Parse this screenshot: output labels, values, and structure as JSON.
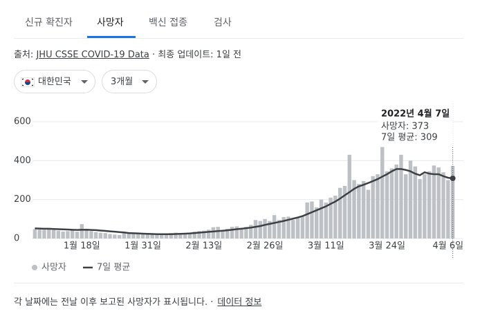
{
  "tabs": [
    "신규 확진자",
    "사망자",
    "백신 접종",
    "검사"
  ],
  "source": {
    "label": "출처:",
    "link": "JHU CSSE COVID-19 Data",
    "updated": "· 최종 업데이트: 1일 전"
  },
  "filters": [
    "대한민국",
    "3개월"
  ],
  "chart_data": {
    "type": "bar",
    "categories": [
      null,
      null,
      null,
      null,
      null,
      null,
      null,
      null,
      null,
      null,
      "1월 18일",
      null,
      null,
      null,
      null,
      null,
      null,
      null,
      null,
      null,
      null,
      null,
      null,
      "1월 31일",
      null,
      null,
      null,
      null,
      null,
      null,
      null,
      null,
      null,
      null,
      null,
      null,
      "2월 13일",
      null,
      null,
      null,
      null,
      null,
      null,
      null,
      null,
      null,
      null,
      null,
      null,
      "2월 26일",
      null,
      null,
      null,
      null,
      null,
      null,
      null,
      null,
      null,
      null,
      null,
      null,
      "3월 11일",
      null,
      null,
      null,
      null,
      null,
      null,
      null,
      null,
      null,
      null,
      null,
      null,
      "3월 24일",
      null,
      null,
      null,
      null,
      null,
      null,
      null,
      null,
      null,
      null,
      null,
      null,
      "4월 6일",
      null
    ],
    "series": [
      {
        "name": "사망자",
        "type": "bar",
        "color": "#bdc1c6",
        "values": [
          48,
          46,
          45,
          52,
          44,
          40,
          36,
          38,
          42,
          35,
          74,
          50,
          38,
          33,
          30,
          28,
          23,
          20,
          18,
          27,
          27,
          25,
          24,
          22,
          21,
          20,
          18,
          22,
          25,
          28,
          30,
          26,
          24,
          25,
          35,
          38,
          40,
          45,
          58,
          60,
          42,
          50,
          60,
          62,
          55,
          60,
          70,
          95,
          90,
          100,
          90,
          120,
          95,
          110,
          112,
          96,
          110,
          115,
          185,
          190,
          160,
          200,
          185,
          210,
          220,
          260,
          270,
          430,
          300,
          280,
          295,
          250,
          320,
          330,
          470,
          345,
          360,
          380,
          430,
          330,
          400,
          370,
          305,
          330,
          345,
          375,
          365,
          340,
          300,
          373
        ]
      },
      {
        "name": "7일 평균",
        "type": "line",
        "color": "#3c4043",
        "values": [
          52,
          51,
          50,
          50,
          49,
          48,
          47,
          46,
          45,
          44,
          45,
          45,
          44,
          43,
          41,
          39,
          37,
          35,
          33,
          31,
          28,
          27,
          26,
          25,
          24,
          23,
          22,
          22,
          22,
          22,
          23,
          24,
          25,
          26,
          28,
          30,
          32,
          34,
          36,
          38,
          40,
          42,
          45,
          48,
          50,
          53,
          56,
          60,
          64,
          70,
          75,
          80,
          85,
          90,
          96,
          102,
          108,
          115,
          125,
          135,
          145,
          155,
          165,
          178,
          190,
          205,
          222,
          238,
          255,
          268,
          276,
          285,
          295,
          305,
          318,
          330,
          345,
          357,
          357,
          352,
          345,
          333,
          325,
          340,
          333,
          330,
          330,
          320,
          312,
          309
        ]
      }
    ],
    "ylim": [
      0,
      600
    ],
    "yticks": [
      0,
      200,
      400,
      600
    ],
    "grid": true,
    "tooltip": {
      "title": "2022년 4월 7일",
      "lines": [
        "사망자: 373",
        "7일 평균: 309"
      ]
    }
  },
  "footer": {
    "note": "각 날짜에는 전날 이후 보고된 사망자가 표시됩니다. ·",
    "link": "데이터 정보"
  }
}
